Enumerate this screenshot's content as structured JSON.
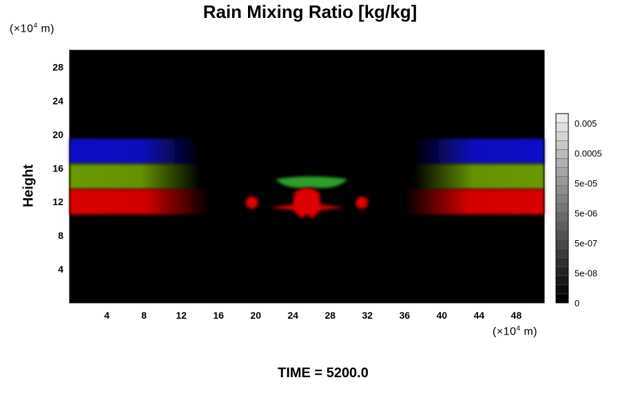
{
  "chart_data": {
    "type": "heatmap",
    "title": "Rain Mixing Ratio [kg/kg]",
    "xlabel": "",
    "ylabel": "Height",
    "x_unit": {
      "prefix": "(×10",
      "exp": "4",
      "suffix": " m)"
    },
    "y_unit": {
      "prefix": "(×10",
      "exp": "4",
      "suffix": " m)"
    },
    "xlim": [
      0,
      51
    ],
    "ylim": [
      0,
      30
    ],
    "x_ticks": [
      "4",
      "8",
      "12",
      "16",
      "20",
      "24",
      "28",
      "32",
      "36",
      "40",
      "44",
      "48"
    ],
    "y_ticks": [
      "4",
      "8",
      "12",
      "16",
      "20",
      "24",
      "28"
    ],
    "background_color": "#000000",
    "grid": false,
    "layers": [
      {
        "color": "#1010c8",
        "side": "left",
        "y_range": [
          16.5,
          19.5
        ],
        "x_extent": 14
      },
      {
        "color": "#6a9a00",
        "side": "left",
        "y_range": [
          13.5,
          16.5
        ],
        "x_extent": 14
      },
      {
        "color": "#dc0000",
        "side": "left",
        "y_range": [
          10.5,
          13.5
        ],
        "x_extent": 15
      },
      {
        "color": "#1010c8",
        "side": "right",
        "y_range": [
          16.5,
          19.5
        ],
        "x_extent": 14
      },
      {
        "color": "#6a9a00",
        "side": "right",
        "y_range": [
          13.5,
          16.5
        ],
        "x_extent": 14
      },
      {
        "color": "#dc0000",
        "side": "right",
        "y_range": [
          10.5,
          13.5
        ],
        "x_extent": 15
      }
    ],
    "features": [
      {
        "color": "#2aa02a",
        "shape": "arc",
        "x": 26,
        "y": 14.2
      },
      {
        "color": "#dc0000",
        "shape": "blob",
        "x": 25.5,
        "y": 12
      },
      {
        "color": "#dc0000",
        "shape": "blob",
        "x": 19.6,
        "y": 11.9
      },
      {
        "color": "#dc0000",
        "shape": "blob",
        "x": 31.4,
        "y": 11.9
      }
    ],
    "colorbar": {
      "labels": [
        "0.005",
        "0.0005",
        "5e-05",
        "5e-06",
        "5e-07",
        "5e-08",
        "0"
      ],
      "levels": 21
    }
  },
  "footer": {
    "time_label": "TIME = 5200.0"
  }
}
